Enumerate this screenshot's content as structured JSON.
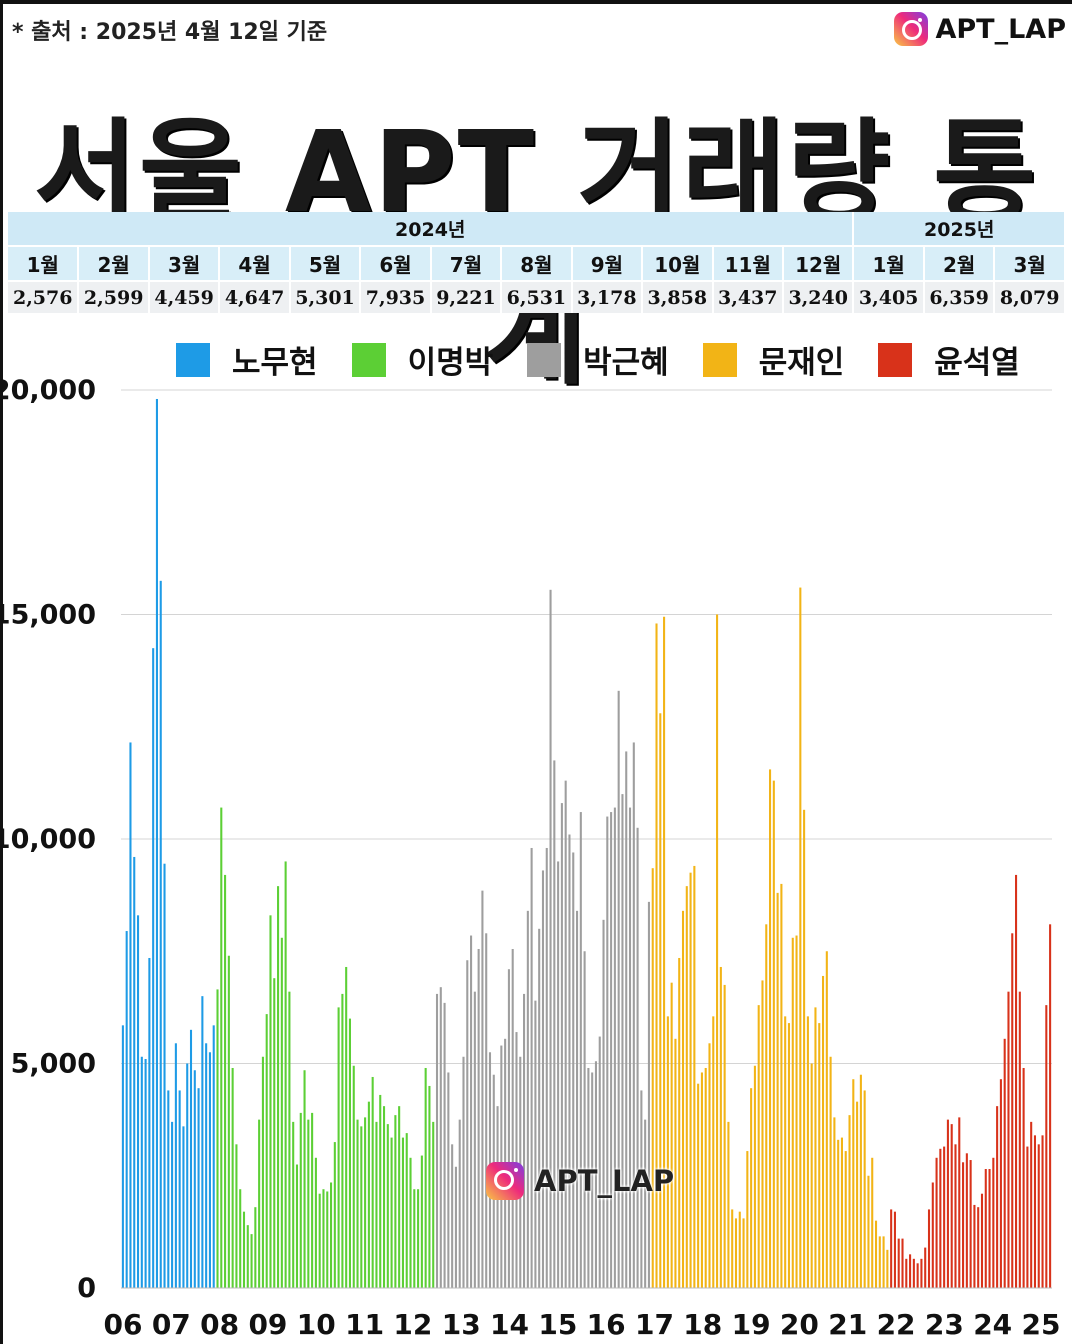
{
  "header": {
    "source_note": "* 출처 : 2025년 4월 12일 기준",
    "brand": "APT_LAP",
    "brand_icon": "instagram-icon",
    "title": "서울 APT 거래량 통계"
  },
  "stats_table": {
    "year_groups": [
      {
        "label": "2024년",
        "months": 12
      },
      {
        "label": "2025년",
        "months": 3
      }
    ],
    "months": [
      "1월",
      "2월",
      "3월",
      "4월",
      "5월",
      "6월",
      "7월",
      "8월",
      "9월",
      "10월",
      "11월",
      "12월",
      "1월",
      "2월",
      "3월"
    ],
    "values": [
      "2,576",
      "2,599",
      "4,459",
      "4,647",
      "5,301",
      "7,935",
      "9,221",
      "6,531",
      "3,178",
      "3,858",
      "3,437",
      "3,240",
      "3,405",
      "6,359",
      "8,079"
    ]
  },
  "watermark": "APT_LAP",
  "chart_data": {
    "type": "bar",
    "ylim": [
      0,
      20000
    ],
    "yticks": [
      0,
      5000,
      10000,
      15000,
      20000
    ],
    "ytick_labels": [
      "0",
      "5,000",
      "10,000",
      "15,000",
      "20,000"
    ],
    "x_tick_labels": [
      "06",
      "07",
      "08",
      "09",
      "10",
      "11",
      "12",
      "13",
      "14",
      "15",
      "16",
      "17",
      "18",
      "19",
      "20",
      "21",
      "22",
      "23",
      "24",
      "25"
    ],
    "grid": true,
    "legend_position": "top",
    "series": [
      {
        "name": "노무현",
        "color": "#1e9be6",
        "values": [
          5850,
          7950,
          12150,
          9600,
          8300,
          5150,
          5100,
          7350,
          14250,
          19800,
          15750,
          9450,
          4400,
          3700,
          5450,
          4400,
          3600,
          5000,
          5750,
          4850,
          4450,
          6500,
          5450,
          5250,
          5850
        ]
      },
      {
        "name": "이명박",
        "color": "#5ccf35",
        "values": [
          6650,
          10700,
          9200,
          7400,
          4900,
          3200,
          2200,
          1700,
          1400,
          1200,
          1800,
          3750,
          5150,
          6100,
          8300,
          6900,
          8950,
          7800,
          9500,
          6600,
          3700,
          2750,
          3900,
          4850,
          3750,
          3900,
          2900,
          2100,
          2200,
          2150,
          2350,
          3250,
          6250,
          6550,
          7150,
          6000,
          4950,
          3750,
          3600,
          3800,
          4150,
          4700,
          3700,
          4300,
          4050,
          3650,
          3350,
          3850,
          4050,
          3350,
          3450,
          2900,
          2200,
          2200,
          2950,
          4900,
          4500,
          3700
        ]
      },
      {
        "name": "박근혜",
        "color": "#9e9e9e",
        "values": [
          6550,
          6700,
          6350,
          4800,
          3200,
          2700,
          3750,
          5150,
          7300,
          7850,
          6600,
          7550,
          8850,
          7900,
          5250,
          4750,
          4050,
          5400,
          5550,
          7100,
          7550,
          5700,
          5150,
          6550,
          8400,
          9800,
          6400,
          8000,
          9300,
          9800,
          15550,
          11750,
          9500,
          10800,
          11300,
          10100,
          9700,
          8400,
          10600,
          7500,
          4900,
          4800,
          5050,
          5600,
          8200,
          10500,
          10600,
          10700,
          13300,
          11000,
          11950,
          10700,
          12150,
          10250,
          4400,
          3750,
          8600
        ]
      },
      {
        "name": "문재인",
        "color": "#f2b416",
        "values": [
          9350,
          14800,
          12800,
          14950,
          6050,
          6800,
          5550,
          7350,
          8400,
          8950,
          9250,
          9400,
          4550,
          4800,
          4900,
          5450,
          6050,
          15000,
          7150,
          6750,
          3700,
          1750,
          1550,
          1700,
          1550,
          3050,
          4450,
          4950,
          6300,
          6850,
          8100,
          11550,
          11300,
          8800,
          9000,
          6050,
          5900,
          7800,
          7850,
          15600,
          10650,
          6050,
          5000,
          6250,
          5900,
          6950,
          7500,
          5150,
          3800,
          3300,
          3350,
          3050,
          3850,
          4650,
          4150,
          4750,
          4400,
          2500,
          2900,
          1500,
          1150,
          1150,
          850
        ]
      },
      {
        "name": "윤석열",
        "color": "#d8321a",
        "values": [
          1750,
          1700,
          1100,
          1100,
          650,
          750,
          650,
          550,
          650,
          900,
          1750,
          2350,
          2900,
          3100,
          3150,
          3750,
          3650,
          3200,
          3800,
          2800,
          3000,
          2850,
          1850,
          1800,
          2100,
          2650,
          2650,
          2900,
          4050,
          4650,
          5550,
          6600,
          7900,
          9200,
          6600,
          4900,
          3150,
          3700,
          3400,
          3200,
          3400,
          6300,
          8100
        ]
      }
    ]
  }
}
